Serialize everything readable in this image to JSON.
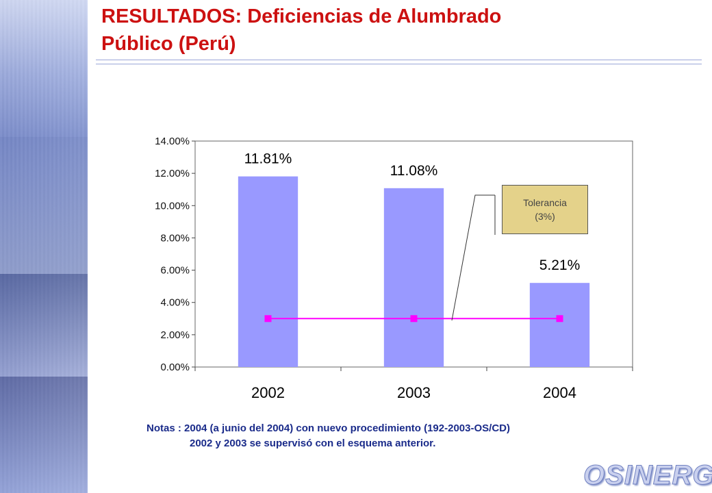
{
  "title": {
    "line1": "RESULTADOS:  Deficiencias de Alumbrado",
    "line2": "Público (Perú)"
  },
  "chart_data": {
    "type": "bar",
    "categories": [
      "2002",
      "2003",
      "2004"
    ],
    "series": [
      {
        "type": "bar",
        "values": [
          11.81,
          11.08,
          5.21
        ],
        "data_labels": [
          "11.81%",
          "11.08%",
          "5.21%"
        ],
        "color": "#9999ff"
      },
      {
        "type": "line",
        "values": [
          3,
          3,
          3
        ],
        "color": "#ff00ff"
      }
    ],
    "ylim": [
      0,
      14
    ],
    "yticks": [
      "0.00%",
      "2.00%",
      "4.00%",
      "6.00%",
      "8.00%",
      "10.00%",
      "12.00%",
      "14.00%"
    ],
    "grid": false,
    "annotation": {
      "line1": "Tolerancia",
      "line2": "(3%)"
    }
  },
  "notes": {
    "line1": "Notas :  2004 (a junio del 2004) con nuevo procedimiento (192-2003-OS/CD)",
    "line2": "2002 y 2003 se supervisó con el esquema anterior."
  },
  "logo": {
    "text": "OSINERG"
  }
}
